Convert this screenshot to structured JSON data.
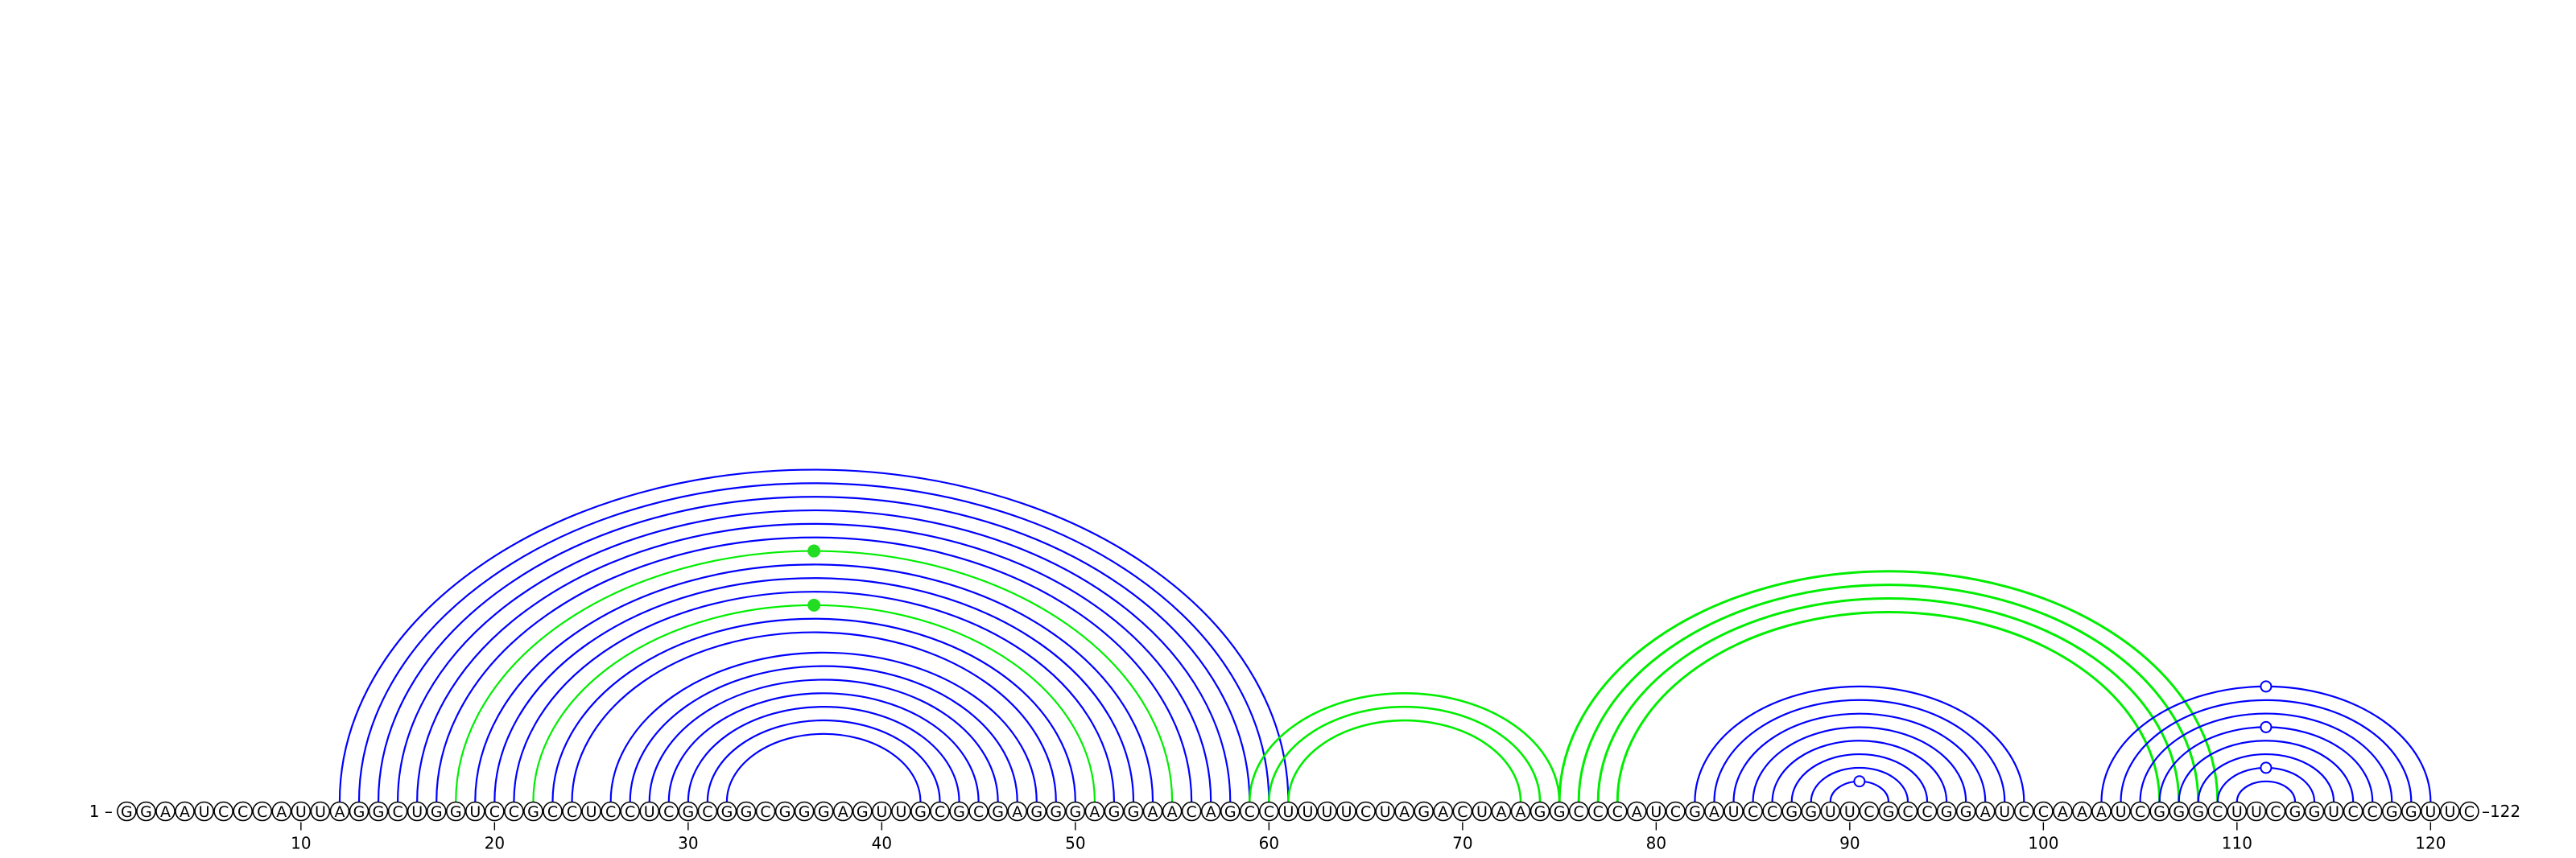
{
  "sequence": "GGAAUCCCAUUAGGCUGGUCCGCCUCCUCGCGGCGGGAGUUGCGCGAGGGAGGAACAGCCUUUUCUAGACUAAGGCCCAUCGAUCCGGUUCGCCGGAUCCAAAUCGGGCUUCGGUCCGGUUC",
  "labels": {
    "start": "1 –",
    "end": "–122"
  },
  "ticks": [
    10,
    20,
    30,
    40,
    50,
    60,
    70,
    80,
    90,
    100,
    110,
    120
  ],
  "colors": {
    "blue": "#0000ff",
    "green": "#00ee00",
    "pair_marker_blue": "#0000ff",
    "pair_marker_green": "#22dd22"
  },
  "arc_groups": [
    {
      "color": "blue",
      "stroke": 2.2,
      "pairs": [
        [
          12,
          61
        ]
      ]
    },
    {
      "color": "blue",
      "stroke": 2.2,
      "pairs": [
        [
          13,
          60
        ],
        [
          14,
          59
        ],
        [
          15,
          58
        ],
        [
          16,
          57
        ],
        [
          17,
          56
        ]
      ]
    },
    {
      "color": "green",
      "stroke": 2.2,
      "pairs": [
        [
          18,
          55
        ]
      ],
      "marker": "filled"
    },
    {
      "color": "blue",
      "stroke": 2.2,
      "pairs": [
        [
          19,
          54
        ],
        [
          20,
          53
        ],
        [
          21,
          52
        ]
      ]
    },
    {
      "color": "green",
      "stroke": 2.2,
      "pairs": [
        [
          22,
          51
        ]
      ],
      "marker": "filled"
    },
    {
      "color": "blue",
      "stroke": 2.2,
      "pairs": [
        [
          23,
          50
        ],
        [
          24,
          49
        ]
      ]
    },
    {
      "color": "blue",
      "stroke": 2.2,
      "pairs": [
        [
          26,
          48
        ],
        [
          27,
          47
        ],
        [
          28,
          46
        ],
        [
          29,
          45
        ],
        [
          30,
          44
        ],
        [
          31,
          43
        ],
        [
          32,
          42
        ]
      ]
    },
    {
      "color": "green",
      "stroke": 2.6,
      "pairs": [
        [
          59,
          75
        ],
        [
          60,
          74
        ],
        [
          61,
          73
        ]
      ]
    },
    {
      "color": "green",
      "stroke": 3.0,
      "pairs": [
        [
          75,
          109
        ],
        [
          76,
          108
        ],
        [
          77,
          107
        ],
        [
          78,
          106
        ]
      ]
    },
    {
      "color": "blue",
      "stroke": 2.2,
      "pairs": [
        [
          82,
          99
        ],
        [
          83,
          98
        ],
        [
          84,
          97
        ],
        [
          85,
          96
        ],
        [
          86,
          95
        ],
        [
          87,
          94
        ],
        [
          88,
          93
        ],
        [
          89,
          92
        ]
      ],
      "marker_pair": [
        89,
        92
      ]
    },
    {
      "color": "blue",
      "stroke": 2.2,
      "pairs": [
        [
          103,
          120
        ],
        [
          104,
          119
        ],
        [
          105,
          118
        ],
        [
          106,
          117
        ],
        [
          107,
          116
        ],
        [
          108,
          115
        ],
        [
          109,
          114
        ],
        [
          110,
          113
        ]
      ],
      "marker_pairs": [
        [
          103,
          120
        ],
        [
          106,
          117
        ],
        [
          109,
          114
        ]
      ]
    }
  ]
}
